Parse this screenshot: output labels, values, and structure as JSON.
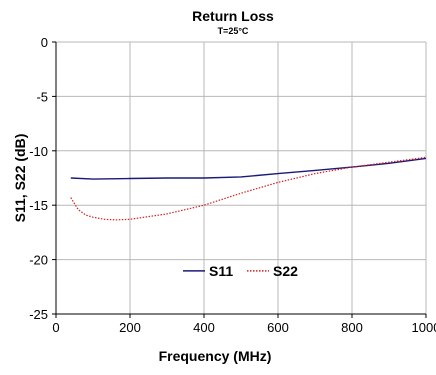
{
  "chart_data": {
    "type": "line",
    "title": "Return Loss",
    "subtitle": "T=25°C",
    "xlabel": "Frequency (MHz)",
    "ylabel": "S11, S22 (dB)",
    "xlim": [
      0,
      1000
    ],
    "ylim": [
      -25,
      0
    ],
    "xticks": [
      0,
      200,
      400,
      600,
      800,
      1000
    ],
    "yticks": [
      0,
      -5,
      -10,
      -15,
      -20,
      -25
    ],
    "xtick_labels": [
      "0",
      "200",
      "400",
      "600",
      "800",
      "1000"
    ],
    "ytick_labels": [
      "0",
      "-5",
      "-10",
      "-15",
      "-20",
      "-25"
    ],
    "grid": true,
    "legend_position": "bottom-center",
    "series": [
      {
        "name": "S11",
        "color": "#1a1a7a",
        "style": "solid",
        "x": [
          40,
          100,
          200,
          300,
          400,
          500,
          600,
          700,
          800,
          900,
          1000
        ],
        "y": [
          -12.5,
          -12.6,
          -12.55,
          -12.5,
          -12.5,
          -12.4,
          -12.1,
          -11.8,
          -11.5,
          -11.15,
          -10.7
        ]
      },
      {
        "name": "S22",
        "color": "#d42020",
        "style": "dotted",
        "x": [
          40,
          60,
          80,
          100,
          130,
          160,
          200,
          300,
          400,
          500,
          600,
          700,
          800,
          900,
          1000
        ],
        "y": [
          -14.3,
          -15.4,
          -15.9,
          -16.1,
          -16.3,
          -16.35,
          -16.3,
          -15.8,
          -15.0,
          -13.9,
          -12.9,
          -12.1,
          -11.5,
          -11.05,
          -10.6
        ]
      }
    ]
  }
}
